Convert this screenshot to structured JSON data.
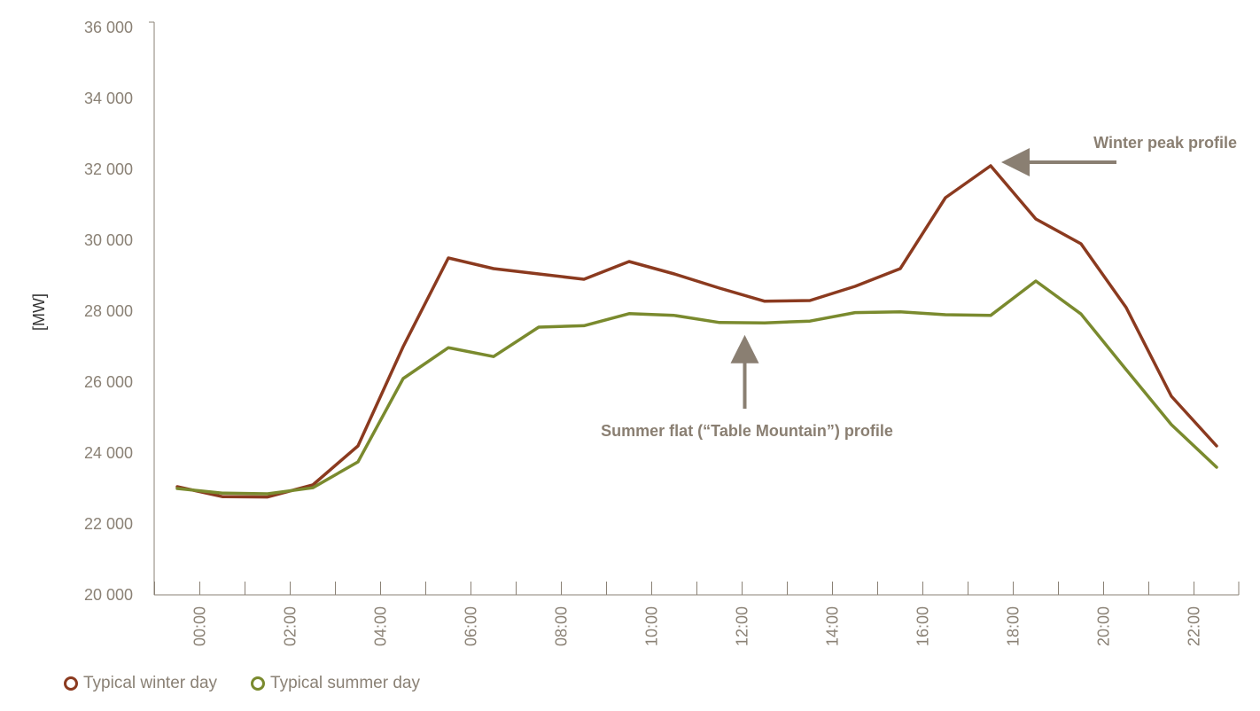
{
  "chart_data": {
    "type": "line",
    "title": "",
    "xlabel": "",
    "ylabel": "[MW]",
    "ylim": [
      20000,
      36000
    ],
    "y_ticks": [
      20000,
      22000,
      24000,
      26000,
      28000,
      30000,
      32000,
      34000,
      36000
    ],
    "y_tick_labels": [
      "20 000",
      "22 000",
      "24 000",
      "26 000",
      "28 000",
      "30 000",
      "32 000",
      "34 000",
      "36 000"
    ],
    "x_tick_labels": [
      "00:00",
      "02:00",
      "04:00",
      "06:00",
      "08:00",
      "10:00",
      "12:00",
      "14:00",
      "16:00",
      "18:00",
      "20:00",
      "22:00"
    ],
    "x_tick_hours": [
      0,
      2,
      4,
      6,
      8,
      10,
      12,
      14,
      16,
      18,
      20,
      22
    ],
    "x_range_hours": [
      -0.5,
      23.5
    ],
    "x": [
      -0.5,
      0.5,
      1.5,
      2.5,
      3.5,
      4.5,
      5.5,
      6.5,
      7.5,
      8.5,
      9.5,
      10.5,
      11.5,
      12.5,
      13.5,
      14.5,
      15.5,
      16.5,
      17.5,
      18.5,
      19.5,
      20.5,
      21.5,
      22.5
    ],
    "series": [
      {
        "name": "Typical winter day",
        "color": "#8b3a1f",
        "values": [
          23050,
          22770,
          22760,
          23100,
          24200,
          27000,
          29500,
          29200,
          29050,
          28900,
          29400,
          29050,
          28650,
          28280,
          28300,
          28700,
          29200,
          31200,
          32100,
          30600,
          29900,
          28100,
          25600,
          24200
        ]
      },
      {
        "name": "Typical summer day",
        "color": "#7a8a2e",
        "values": [
          23000,
          22870,
          22850,
          23020,
          23750,
          26100,
          26970,
          26720,
          27550,
          27590,
          27930,
          27880,
          27680,
          27670,
          27720,
          27960,
          27980,
          27900,
          27880,
          28850,
          27920,
          26350,
          24800,
          23600
        ]
      }
    ],
    "annotations": [
      {
        "text": "Winter peak profile",
        "arrow_to_hour": 17.5,
        "arrow_to_value": 32100,
        "series": "Typical winter day"
      },
      {
        "text": "Summer flat (“Table Mountain”) profile",
        "arrow_to_hour": 12.0,
        "arrow_to_value": 27680,
        "series": "Typical summer day"
      }
    ],
    "grid": false,
    "legend_position": "bottom-left"
  },
  "colors": {
    "axis": "#8a8175",
    "annotation": "#8a7f72"
  }
}
